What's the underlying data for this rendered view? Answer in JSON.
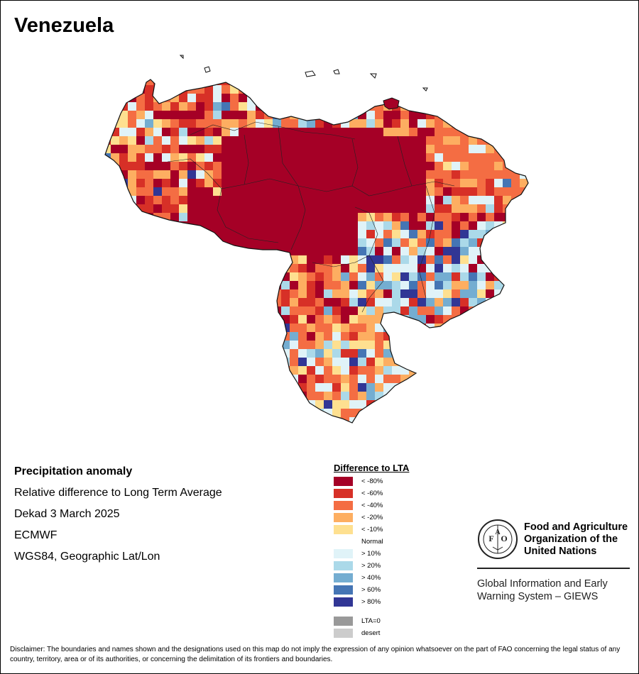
{
  "title": "Venezuela",
  "info": {
    "heading": "Precipitation anomaly",
    "subtitle": "Relative difference to Long Term Average",
    "period": "Dekad 3 March 2025",
    "source": "ECMWF",
    "projection": "WGS84, Geographic Lat/Lon"
  },
  "legend": {
    "title": "Difference to LTA",
    "dry": [
      {
        "label": "< -80%",
        "color": "#a50026"
      },
      {
        "label": "< -60%",
        "color": "#d73027"
      },
      {
        "label": "< -40%",
        "color": "#f46d43"
      },
      {
        "label": "< -20%",
        "color": "#fdae61"
      },
      {
        "label": "< -10%",
        "color": "#fee090"
      }
    ],
    "normal": "Normal",
    "wet": [
      {
        "label": "> 10%",
        "color": "#e0f3f8"
      },
      {
        "label": "> 20%",
        "color": "#abd9e9"
      },
      {
        "label": "> 40%",
        "color": "#74add1"
      },
      {
        "label": "> 60%",
        "color": "#4575b4"
      },
      {
        "label": "> 80%",
        "color": "#313695"
      }
    ],
    "other": [
      {
        "label": "LTA=0",
        "color": "#999999"
      },
      {
        "label": "desert",
        "color": "#cccccc"
      }
    ]
  },
  "branding": {
    "organization": [
      "Food and Agriculture",
      "Organization of the",
      "United Nations"
    ],
    "system": [
      "Global Information and Early",
      "Warning System – GIEWS"
    ]
  },
  "disclaimer": "Disclaimer: The boundaries and names shown and the designations used on this map do not imply the expression of any opinion whatsoever on the part of FAO concerning the legal status of any country, territory, area or of its authorities, or concerning the delimitation of its frontiers and boundaries."
}
